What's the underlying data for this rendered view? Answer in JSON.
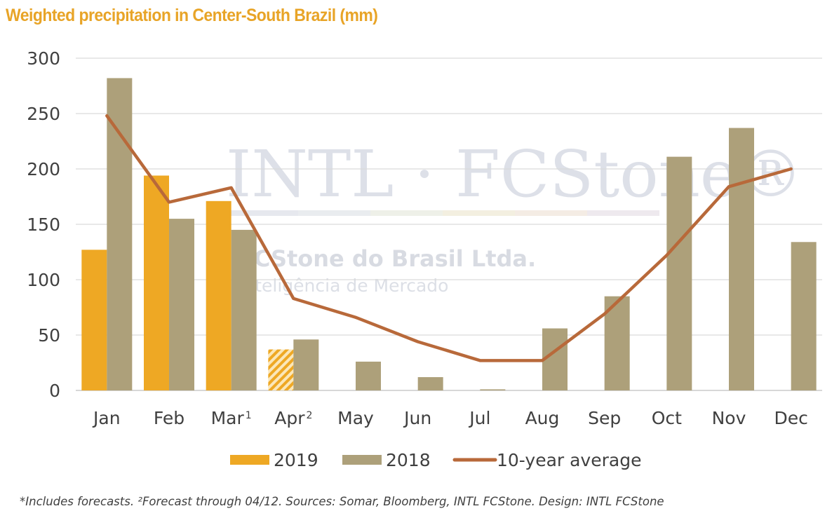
{
  "title": "Weighted precipitation in Center-South Brazil (mm)",
  "footnote": "*Includes forecasts. ²Forecast through 04/12. Sources: Somar, Bloomberg, INTL FCStone. Design: INTL FCStone",
  "watermark": {
    "logo": "INTL · FCStone®",
    "line1": "FCStone do Brasil Ltda.",
    "line2": "Inteligência de Mercado"
  },
  "colors": {
    "series_2019": "#EEA824",
    "series_2018": "#ADA07A",
    "average": "#B8693A",
    "grid": "#d9d9d9",
    "title": "#E8A427"
  },
  "chart_data": {
    "type": "bar",
    "title": "Weighted precipitation in Center-South Brazil (mm)",
    "categories": [
      "Jan",
      "Feb",
      "Mar",
      "Apr",
      "May",
      "Jun",
      "Jul",
      "Aug",
      "Sep",
      "Oct",
      "Nov",
      "Dec"
    ],
    "category_superscripts": [
      "",
      "",
      "1",
      "2",
      "",
      "",
      "",
      "",
      "",
      "",
      "",
      ""
    ],
    "series": [
      {
        "name": "2019",
        "type": "bar",
        "values": [
          127,
          194,
          171,
          37,
          null,
          null,
          null,
          null,
          null,
          null,
          null,
          null
        ],
        "forecast_index": 3
      },
      {
        "name": "2018",
        "type": "bar",
        "values": [
          282,
          155,
          145,
          46,
          26,
          12,
          1,
          56,
          85,
          211,
          237,
          134
        ]
      },
      {
        "name": "10-year average",
        "type": "line",
        "values": [
          248,
          170,
          183,
          83,
          66,
          44,
          27,
          27,
          69,
          122,
          184,
          200
        ]
      }
    ],
    "ylim": [
      0,
      300
    ],
    "yticks": [
      0,
      50,
      100,
      150,
      200,
      250,
      300
    ],
    "grid": true,
    "legend": "bottom"
  }
}
